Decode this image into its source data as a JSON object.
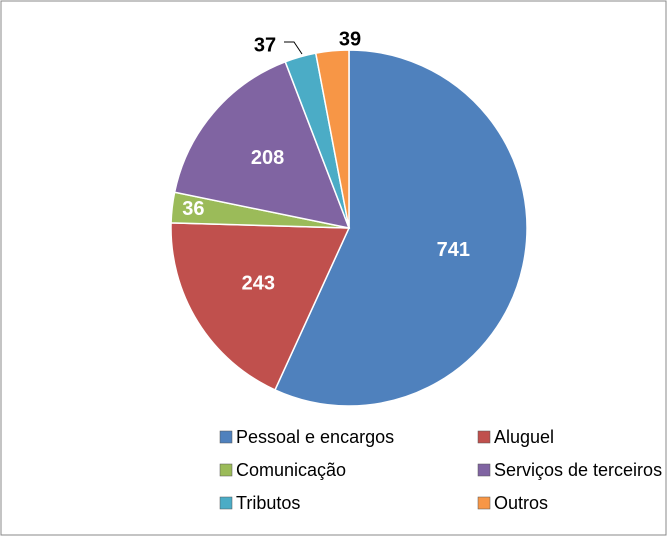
{
  "chart_data": {
    "type": "pie",
    "categories": [
      "Pessoal e encargos",
      "Aluguel",
      "Comunicação",
      "Serviços de terceiros",
      "Tributos",
      "Outros"
    ],
    "values": [
      741,
      243,
      36,
      208,
      37,
      39
    ],
    "colors": [
      "#4f81bd",
      "#c0504d",
      "#9bbb59",
      "#8064a2",
      "#4bacc6",
      "#f79646"
    ],
    "legend": "bottom"
  }
}
